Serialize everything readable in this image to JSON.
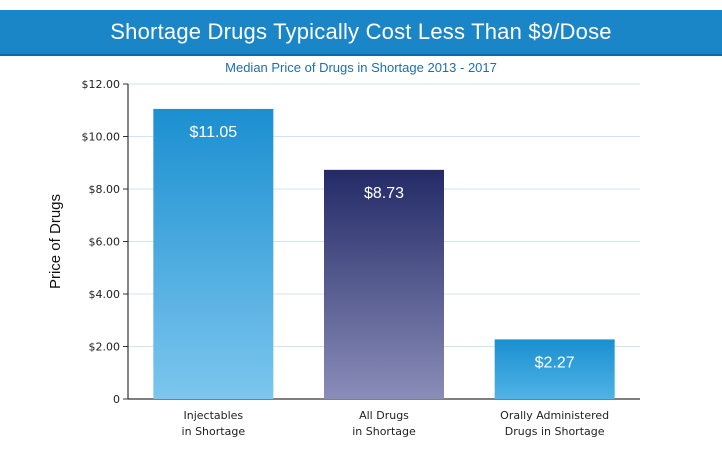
{
  "header": {
    "title": "Shortage Drugs Typically Cost Less Than $9/Dose",
    "subtitle": "Median Price of Drugs in Shortage 2013 - 2017"
  },
  "colors": {
    "title_bar": "#1a86c8",
    "subtitle_text": "#1a6fb0",
    "bar_injectables_top": "#1b8fd0",
    "bar_injectables_bottom": "#7cc6ee",
    "bar_all_top": "#232a66",
    "bar_all_bottom": "#8a8db8",
    "bar_oral_top": "#1b8fd0",
    "bar_oral_bottom": "#4fb3e6",
    "gridline": "#cfe3f0"
  },
  "chart_data": {
    "type": "bar",
    "title": "Shortage Drugs Typically Cost Less Than $9/Dose",
    "subtitle": "Median Price of Drugs in Shortage 2013 - 2017",
    "categories": [
      [
        "Injectables",
        "in Shortage"
      ],
      [
        "All Drugs",
        "in Shortage"
      ],
      [
        "Orally Administered",
        "Drugs in Shortage"
      ]
    ],
    "values": [
      11.05,
      8.73,
      2.27
    ],
    "value_labels": [
      "$11.05",
      "$8.73",
      "$2.27"
    ],
    "xlabel": "",
    "ylabel": "Price of Drugs",
    "ylim": [
      0,
      12
    ],
    "yticks": [
      0,
      2,
      4,
      6,
      8,
      10,
      12
    ],
    "ytick_labels": [
      "0",
      "$2.00",
      "$4.00",
      "$6.00",
      "$8.00",
      "$10.00",
      "$12.00"
    ],
    "grid": true,
    "legend": "none"
  }
}
